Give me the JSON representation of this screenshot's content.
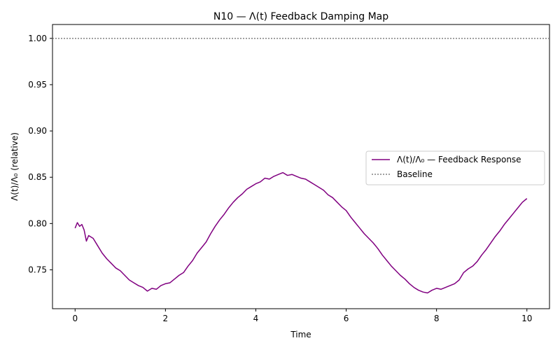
{
  "chart_data": {
    "type": "line",
    "title": "N10 — Λ(t) Feedback Damping Map",
    "xlabel": "Time",
    "ylabel": "Λ(t)/Λ₀ (relative)",
    "xlim": [
      -0.5,
      10.5
    ],
    "ylim": [
      0.708,
      1.015
    ],
    "x_ticks": [
      0,
      2,
      4,
      6,
      8,
      10
    ],
    "y_ticks": [
      0.75,
      0.8,
      0.85,
      0.9,
      0.95,
      1.0
    ],
    "x_tick_labels": [
      "0",
      "2",
      "4",
      "6",
      "8",
      "10"
    ],
    "y_tick_labels": [
      "0.75",
      "0.80",
      "0.85",
      "0.90",
      "0.95",
      "1.00"
    ],
    "grid": false,
    "legend_position": "center-right",
    "series": [
      {
        "name": "Λ(t)/Λ₀ — Feedback Response",
        "color": "#800080",
        "style": "solid",
        "x": [
          0,
          0.05,
          0.1,
          0.15,
          0.2,
          0.25,
          0.3,
          0.4,
          0.5,
          0.6,
          0.7,
          0.8,
          0.9,
          1.0,
          1.1,
          1.2,
          1.3,
          1.4,
          1.5,
          1.6,
          1.7,
          1.8,
          1.9,
          2.0,
          2.1,
          2.2,
          2.3,
          2.4,
          2.5,
          2.6,
          2.7,
          2.8,
          2.9,
          3.0,
          3.1,
          3.2,
          3.3,
          3.4,
          3.5,
          3.6,
          3.7,
          3.8,
          3.9,
          4.0,
          4.1,
          4.2,
          4.3,
          4.4,
          4.5,
          4.6,
          4.7,
          4.8,
          4.9,
          5.0,
          5.1,
          5.2,
          5.3,
          5.4,
          5.5,
          5.6,
          5.7,
          5.8,
          5.9,
          6.0,
          6.1,
          6.2,
          6.3,
          6.4,
          6.5,
          6.6,
          6.7,
          6.8,
          6.9,
          7.0,
          7.1,
          7.2,
          7.3,
          7.4,
          7.5,
          7.6,
          7.7,
          7.8,
          7.9,
          8.0,
          8.1,
          8.2,
          8.3,
          8.4,
          8.5,
          8.6,
          8.7,
          8.8,
          8.9,
          9.0,
          9.1,
          9.2,
          9.3,
          9.4,
          9.5,
          9.6,
          9.7,
          9.8,
          9.9,
          10.0
        ],
        "values": [
          0.795,
          0.801,
          0.797,
          0.799,
          0.793,
          0.781,
          0.787,
          0.784,
          0.776,
          0.768,
          0.762,
          0.757,
          0.752,
          0.749,
          0.744,
          0.739,
          0.736,
          0.733,
          0.731,
          0.727,
          0.73,
          0.729,
          0.733,
          0.735,
          0.736,
          0.74,
          0.744,
          0.747,
          0.754,
          0.76,
          0.768,
          0.774,
          0.78,
          0.789,
          0.797,
          0.804,
          0.81,
          0.817,
          0.823,
          0.828,
          0.832,
          0.837,
          0.84,
          0.843,
          0.845,
          0.849,
          0.848,
          0.851,
          0.853,
          0.855,
          0.852,
          0.853,
          0.851,
          0.849,
          0.848,
          0.845,
          0.842,
          0.839,
          0.836,
          0.831,
          0.828,
          0.823,
          0.818,
          0.814,
          0.807,
          0.801,
          0.795,
          0.789,
          0.784,
          0.779,
          0.773,
          0.766,
          0.76,
          0.754,
          0.749,
          0.744,
          0.74,
          0.735,
          0.731,
          0.728,
          0.726,
          0.725,
          0.728,
          0.73,
          0.729,
          0.731,
          0.733,
          0.735,
          0.739,
          0.747,
          0.751,
          0.754,
          0.759,
          0.766,
          0.772,
          0.779,
          0.786,
          0.792,
          0.799,
          0.805,
          0.811,
          0.817,
          0.823,
          0.827
        ]
      },
      {
        "name": "Baseline",
        "color": "#808080",
        "style": "dotted",
        "x": [
          -0.5,
          10.5
        ],
        "values": [
          1.0,
          1.0
        ]
      }
    ]
  }
}
